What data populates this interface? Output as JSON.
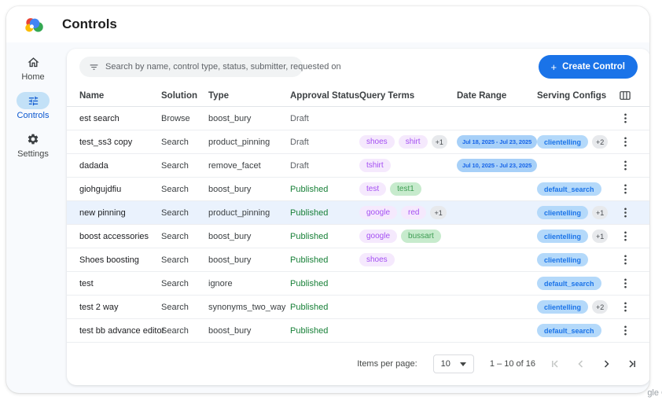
{
  "header": {
    "title": "Controls"
  },
  "sidebar": {
    "items": [
      {
        "label": "Home",
        "icon": "home-icon",
        "active": false
      },
      {
        "label": "Controls",
        "icon": "tune-icon",
        "active": true
      },
      {
        "label": "Settings",
        "icon": "gear-icon",
        "active": false
      }
    ]
  },
  "toolbar": {
    "search_placeholder": "Search by name, control type, status, submitter, requested on",
    "create_label": "Create Control",
    "create_icon": "+"
  },
  "table": {
    "columns": [
      "Name",
      "Solution",
      "Type",
      "Approval Status",
      "Query Terms",
      "Date Range",
      "Serving Configs"
    ],
    "rows": [
      {
        "name": "est search",
        "solution": "Browse",
        "type": "boost_bury",
        "status": "Draft",
        "query_terms": [],
        "query_more": "",
        "date_range": "",
        "serving": [],
        "serving_more": "",
        "highlight": false
      },
      {
        "name": "test_ss3 copy",
        "solution": "Search",
        "type": "product_pinning",
        "status": "Draft",
        "query_terms": [
          {
            "label": "shoes",
            "color": "purple"
          },
          {
            "label": "shirt",
            "color": "purple"
          }
        ],
        "query_more": "+1",
        "date_range": "Jul 18, 2025 - Jul 23, 2025",
        "serving": [
          "clientelling"
        ],
        "serving_more": "+2",
        "highlight": false
      },
      {
        "name": "dadada",
        "solution": "Search",
        "type": "remove_facet",
        "status": "Draft",
        "query_terms": [
          {
            "label": "tshirt",
            "color": "purple"
          }
        ],
        "query_more": "",
        "date_range": "Jul 10, 2025 - Jul 23, 2025",
        "serving": [],
        "serving_more": "",
        "highlight": false
      },
      {
        "name": "giohgujdfiu",
        "solution": "Search",
        "type": "boost_bury",
        "status": "Published",
        "query_terms": [
          {
            "label": "test",
            "color": "purple"
          },
          {
            "label": "test1",
            "color": "green"
          }
        ],
        "query_more": "",
        "date_range": "",
        "serving": [
          "default_search"
        ],
        "serving_more": "",
        "highlight": false
      },
      {
        "name": "new pinning",
        "solution": "Search",
        "type": "product_pinning",
        "status": "Published",
        "query_terms": [
          {
            "label": "google",
            "color": "purple"
          },
          {
            "label": "red",
            "color": "purple"
          }
        ],
        "query_more": "+1",
        "date_range": "",
        "serving": [
          "clientelling"
        ],
        "serving_more": "+1",
        "highlight": true
      },
      {
        "name": "boost accessories",
        "solution": "Search",
        "type": "boost_bury",
        "status": "Published",
        "query_terms": [
          {
            "label": "google",
            "color": "purple"
          },
          {
            "label": "bussart",
            "color": "green"
          }
        ],
        "query_more": "",
        "date_range": "",
        "serving": [
          "clientelling"
        ],
        "serving_more": "+1",
        "highlight": false
      },
      {
        "name": "Shoes boosting",
        "solution": "Search",
        "type": "boost_bury",
        "status": "Published",
        "query_terms": [
          {
            "label": "shoes",
            "color": "purple"
          }
        ],
        "query_more": "",
        "date_range": "",
        "serving": [
          "clientelling"
        ],
        "serving_more": "",
        "highlight": false
      },
      {
        "name": "test",
        "solution": "Search",
        "type": "ignore",
        "status": "Published",
        "query_terms": [],
        "query_more": "",
        "date_range": "",
        "serving": [
          "default_search"
        ],
        "serving_more": "",
        "highlight": false
      },
      {
        "name": "test 2 way",
        "solution": "Search",
        "type": "synonyms_two_way",
        "status": "Published",
        "query_terms": [],
        "query_more": "",
        "date_range": "",
        "serving": [
          "clientelling"
        ],
        "serving_more": "+2",
        "highlight": false
      },
      {
        "name": "test bb advance editor",
        "solution": "Search",
        "type": "boost_bury",
        "status": "Published",
        "query_terms": [],
        "query_more": "",
        "date_range": "",
        "serving": [
          "default_search"
        ],
        "serving_more": "",
        "highlight": false
      }
    ]
  },
  "pagination": {
    "items_per_page_label": "Items per page:",
    "items_per_page_value": "10",
    "range_label": "1 – 10 of 16"
  },
  "watermark": "gle C",
  "colors": {
    "accent_blue": "#1a73e8",
    "active_nav_blue": "#0b57d0",
    "published_green": "#188038",
    "draft_gray": "#5f6368",
    "query_chip_purple_bg": "#f5e9fd",
    "query_chip_purple_text": "#a44ff2",
    "query_chip_green_bg": "#c7ebcd",
    "query_chip_green_text": "#3d9c52",
    "date_chip_bg": "#a7d0f8",
    "serving_chip_bg": "#b4d9fa",
    "more_chip_bg": "#e7e9ec",
    "row_highlight": "#eaf2fd"
  }
}
